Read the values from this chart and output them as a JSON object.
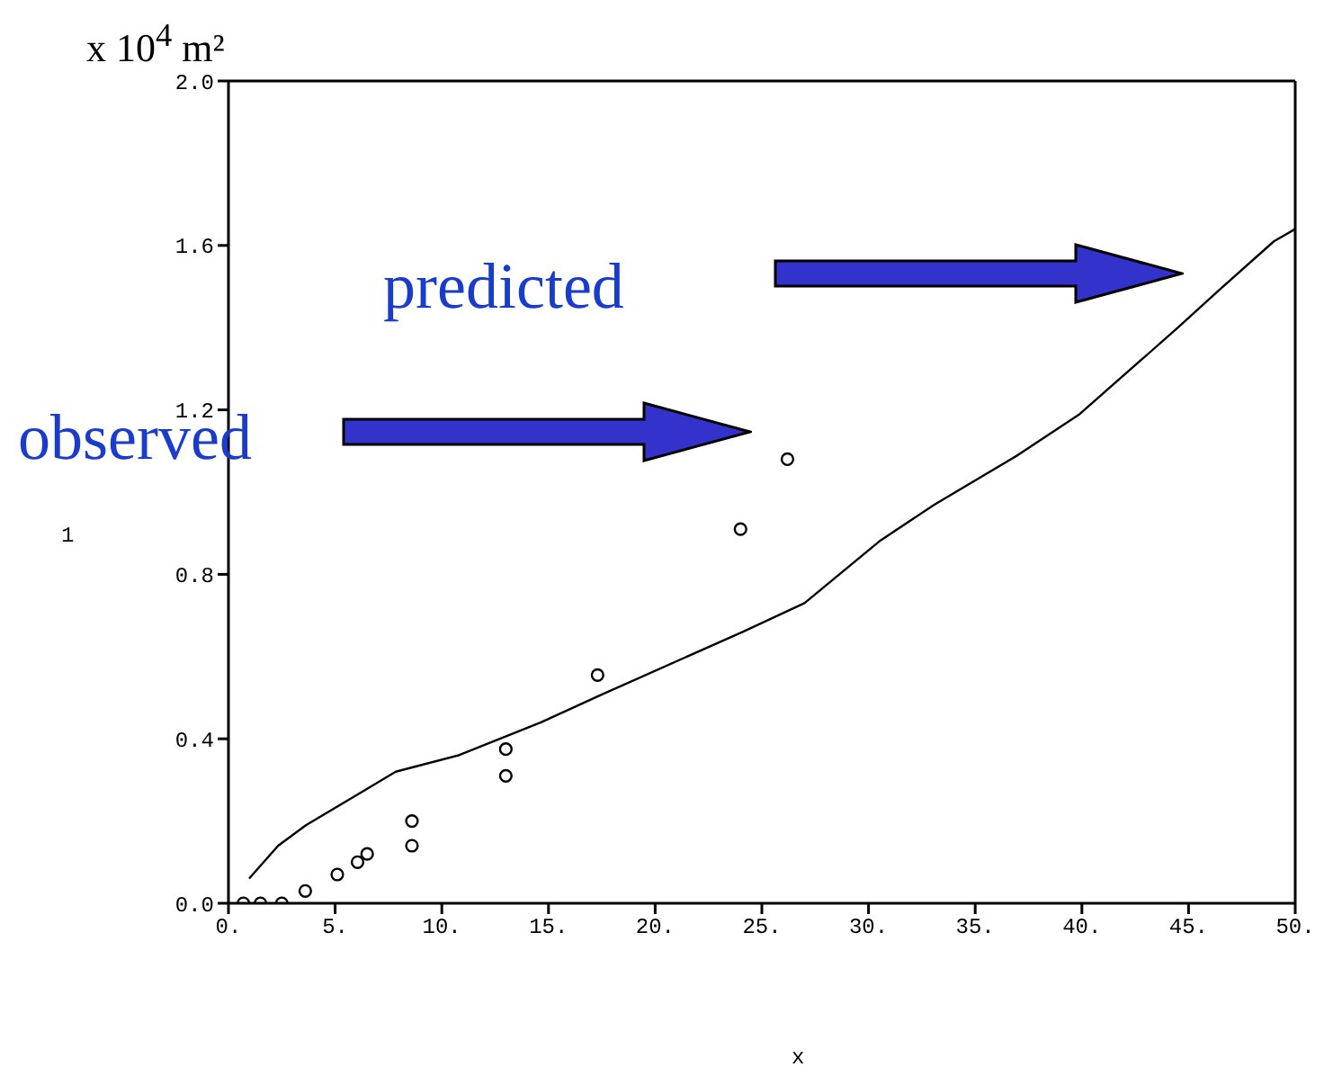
{
  "chart_data": {
    "type": "scatter",
    "title": "x 10$^{4}$ m²",
    "xlabel": "x",
    "ylabel": "1",
    "annotations": [
      "predicted",
      "observed"
    ],
    "xlim": [
      0,
      50
    ],
    "xticks": [
      {
        "value": 0,
        "label": "0."
      },
      {
        "value": 5,
        "label": "5."
      },
      {
        "value": 10,
        "label": "10."
      },
      {
        "value": 15,
        "label": "15."
      },
      {
        "value": 20,
        "label": "20."
      },
      {
        "value": 25,
        "label": "25."
      },
      {
        "value": 30,
        "label": "30."
      },
      {
        "value": 35,
        "label": "35."
      },
      {
        "value": 40,
        "label": "40."
      },
      {
        "value": 45,
        "label": "45."
      },
      {
        "value": 50,
        "label": "50."
      }
    ],
    "ylim": [
      0,
      2
    ],
    "yticks": [
      {
        "value": 0,
        "label": "0.0"
      },
      0.4,
      0.8,
      1.2,
      1.6,
      {
        "value": 2,
        "label": "2.0"
      }
    ],
    "grid": false,
    "legend": false,
    "series": [
      {
        "color": "#000000",
        "marker": "circle",
        "x": [
          0.7,
          1.5,
          2.5,
          3.6,
          5.1,
          6.05,
          6.5,
          8.6,
          8.6,
          13.0,
          13.0,
          17.3,
          24.0,
          26.2
        ],
        "values": [
          0.0,
          0.0,
          0.0,
          0.03,
          0.07,
          0.1,
          0.12,
          0.2,
          0.14,
          0.375,
          0.31,
          0.555,
          0.91,
          1.08
        ]
      },
      {
        "type": "line",
        "color": "#000000",
        "marker": "none",
        "line_style": "solid",
        "x": [
          0.97,
          2.33,
          3.63,
          5.9,
          7.84,
          10.8,
          14.65,
          17.6,
          24.1,
          27.0,
          30.5,
          33.1,
          37.0,
          39.9,
          44.5,
          46.4,
          49.0,
          50
        ],
        "values": [
          0.06,
          0.14,
          0.19,
          0.26,
          0.32,
          0.36,
          0.44,
          0.51,
          0.66,
          0.73,
          0.88,
          0.97,
          1.09,
          1.19,
          1.4,
          1.49,
          1.61,
          1.64
        ]
      }
    ]
  }
}
